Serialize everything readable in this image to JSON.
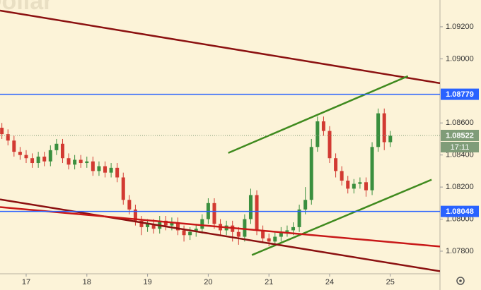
{
  "chart_data": {
    "type": "candlestick",
    "watermark": "Dollar",
    "x": [
      -0.4,
      -0.3,
      -0.2,
      -0.1,
      0,
      0.1,
      0.2,
      0.3,
      0.4,
      0.5,
      0.6,
      0.7,
      0.8,
      0.9,
      1,
      1.1,
      1.2,
      1.3,
      1.4,
      1.5,
      1.6,
      1.7,
      1.8,
      1.9,
      2,
      2.1,
      2.2,
      2.3,
      2.4,
      2.5,
      2.6,
      2.7,
      2.8,
      2.9,
      3,
      3.1,
      3.2,
      3.3,
      3.4,
      3.5,
      3.6,
      3.7,
      3.8,
      3.9,
      4,
      4.1,
      4.2,
      4.3,
      4.4,
      4.5,
      4.6,
      4.7,
      4.8,
      4.9,
      5,
      5.1,
      5.2,
      5.3,
      5.4,
      5.5,
      5.6,
      5.7,
      5.8,
      5.9,
      6
    ],
    "open": [
      1.0857,
      1.0853,
      1.0849,
      1.0842,
      1.084,
      1.0838,
      1.0835,
      1.0839,
      1.0836,
      1.0843,
      1.0847,
      1.0838,
      1.0834,
      1.0837,
      1.0835,
      1.0836,
      1.083,
      1.0833,
      1.0829,
      1.0832,
      1.0826,
      1.0812,
      1.0806,
      1.0799,
      1.0795,
      1.0797,
      1.0794,
      1.0799,
      1.0796,
      1.0798,
      1.0793,
      1.079,
      1.0792,
      1.0794,
      1.08,
      1.081,
      1.0797,
      1.0793,
      1.0796,
      1.0792,
      1.0789,
      1.08,
      1.0815,
      1.0793,
      1.0788,
      1.0786,
      1.0789,
      1.0792,
      1.0793,
      1.0795,
      1.0806,
      1.0812,
      1.0845,
      1.0861,
      1.0855,
      1.0838,
      1.083,
      1.0824,
      1.0819,
      1.0822,
      1.0823,
      1.0818,
      1.0845,
      1.0866,
      1.0848
    ],
    "high": [
      1.086,
      1.0856,
      1.0852,
      1.0845,
      1.0843,
      1.0841,
      1.0842,
      1.0842,
      1.0846,
      1.085,
      1.085,
      1.0841,
      1.084,
      1.084,
      1.0839,
      1.0839,
      1.0836,
      1.0836,
      1.0835,
      1.0835,
      1.0829,
      1.0815,
      1.0809,
      1.0802,
      1.08,
      1.08,
      1.0802,
      1.0802,
      1.0801,
      1.0801,
      1.0796,
      1.0795,
      1.0797,
      1.0803,
      1.0813,
      1.0813,
      1.08,
      1.0799,
      1.0799,
      1.0795,
      1.0803,
      1.0819,
      1.0818,
      1.0796,
      1.0791,
      1.0792,
      1.0795,
      1.0796,
      1.0798,
      1.0809,
      1.082,
      1.085,
      1.0864,
      1.0864,
      1.0858,
      1.0841,
      1.0833,
      1.0827,
      1.0825,
      1.0826,
      1.0826,
      1.0848,
      1.0869,
      1.0869,
      1.0855
    ],
    "low": [
      1.085,
      1.0846,
      1.0839,
      1.0837,
      1.0835,
      1.0832,
      1.0832,
      1.0833,
      1.0833,
      1.084,
      1.0835,
      1.0831,
      1.0831,
      1.0832,
      1.0832,
      1.0827,
      1.0827,
      1.0826,
      1.0826,
      1.0823,
      1.0809,
      1.0803,
      1.0796,
      1.079,
      1.0792,
      1.0791,
      1.0791,
      1.0793,
      1.0793,
      1.079,
      1.0786,
      1.0787,
      1.0789,
      1.0791,
      1.0797,
      1.0794,
      1.079,
      1.079,
      1.0786,
      1.0784,
      1.0786,
      1.0797,
      1.079,
      1.0785,
      1.0783,
      1.0783,
      1.0786,
      1.0789,
      1.079,
      1.0792,
      1.0803,
      1.0809,
      1.0842,
      1.0852,
      1.0835,
      1.0826,
      1.0821,
      1.0816,
      1.0816,
      1.0819,
      1.0814,
      1.0815,
      1.0842,
      1.0843,
      1.0845
    ],
    "close": [
      1.0853,
      1.0849,
      1.0842,
      1.084,
      1.0838,
      1.0835,
      1.0839,
      1.0836,
      1.0843,
      1.0847,
      1.0838,
      1.0834,
      1.0837,
      1.0835,
      1.0836,
      1.083,
      1.0833,
      1.0829,
      1.0832,
      1.0826,
      1.0812,
      1.0806,
      1.0799,
      1.0795,
      1.0797,
      1.0794,
      1.0799,
      1.0796,
      1.0798,
      1.0793,
      1.079,
      1.0792,
      1.0794,
      1.08,
      1.081,
      1.0797,
      1.0793,
      1.0796,
      1.0792,
      1.0789,
      1.08,
      1.0815,
      1.0793,
      1.0788,
      1.0786,
      1.0789,
      1.0792,
      1.0793,
      1.0795,
      1.0806,
      1.0812,
      1.0845,
      1.0861,
      1.0855,
      1.0838,
      1.083,
      1.0824,
      1.0819,
      1.0822,
      1.0823,
      1.0818,
      1.0845,
      1.0866,
      1.0848,
      1.0852
    ],
    "up_color": "#3a8f3e",
    "down_color": "#d23a32",
    "xlim": [
      -0.431,
      6.818
    ],
    "ylim": [
      1.07659,
      1.09367
    ],
    "xticks": [
      {
        "value": 0,
        "label": "17"
      },
      {
        "value": 1,
        "label": "18"
      },
      {
        "value": 2,
        "label": "19"
      },
      {
        "value": 3,
        "label": "20"
      },
      {
        "value": 4,
        "label": "21"
      },
      {
        "value": 5,
        "label": "24"
      },
      {
        "value": 6,
        "label": "25"
      }
    ],
    "yticks": [
      {
        "value": 1.078,
        "label": "1.07800"
      },
      {
        "value": 1.08,
        "label": "1.08000"
      },
      {
        "value": 1.082,
        "label": "1.08200"
      },
      {
        "value": 1.084,
        "label": "1.08400"
      },
      {
        "value": 1.086,
        "label": "1.08600"
      },
      {
        "value": 1.09,
        "label": "1.09000"
      },
      {
        "value": 1.092,
        "label": "1.09200"
      }
    ],
    "hlines": [
      {
        "value": 1.08779,
        "color": "#2962ff"
      },
      {
        "value": 1.08048,
        "color": "#2962ff"
      }
    ],
    "last_price": {
      "value": 1.08522,
      "countdown": "17:11",
      "color": "#7f9c78"
    },
    "trend_lines": [
      {
        "x": [
          -0.431,
          6.818
        ],
        "y": [
          1.09301,
          1.08848
        ],
        "color": "#8b1010"
      },
      {
        "x": [
          3.33,
          6.29
        ],
        "y": [
          1.08413,
          1.08892
        ],
        "color": "#3f8a1e"
      },
      {
        "x": [
          3.72,
          6.68
        ],
        "y": [
          1.07776,
          1.08246
        ],
        "color": "#3f8a1e"
      },
      {
        "x": [
          -0.431,
          6.818
        ],
        "y": [
          1.08123,
          1.07675
        ],
        "color": "#8b1010"
      },
      {
        "x": [
          -0.431,
          6.818
        ],
        "y": [
          1.08075,
          1.07829
        ],
        "color": "#c81818"
      }
    ]
  }
}
